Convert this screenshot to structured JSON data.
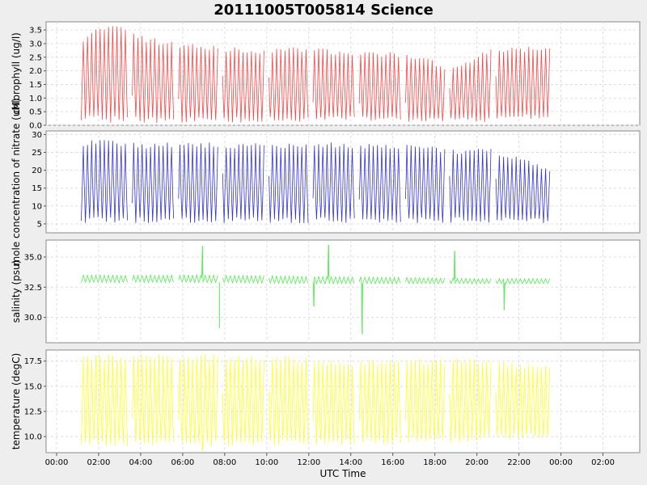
{
  "title": "20111005T005814 Science",
  "x_axis": {
    "label": "UTC Time",
    "range_hours": [
      -0.5,
      27.75
    ],
    "ticks": [
      "00:00",
      "02:00",
      "04:00",
      "06:00",
      "08:00",
      "10:00",
      "12:00",
      "14:00",
      "16:00",
      "18:00",
      "20:00",
      "22:00",
      "00:00",
      "02:00"
    ],
    "tick_hours": [
      0,
      2,
      4,
      6,
      8,
      10,
      12,
      14,
      16,
      18,
      20,
      22,
      24,
      26
    ]
  },
  "chart_data": [
    {
      "type": "line",
      "name": "chlorophyll",
      "ylabel": "chlorophyll (ug/l)",
      "ylim": [
        0.0,
        3.8
      ],
      "yticks": [
        "0.0",
        "0.5",
        "1.0",
        "1.5",
        "2.0",
        "2.5",
        "3.0",
        "3.5"
      ],
      "ytick_values": [
        0.0,
        0.5,
        1.0,
        1.5,
        2.0,
        2.5,
        3.0,
        3.5
      ],
      "color": "#ff4444",
      "grid": true,
      "x_start": 1.17,
      "x_end": 23.5,
      "profile_period_hours": 0.2,
      "gap_hours": [
        3.4,
        5.6,
        7.7,
        9.9,
        12.0,
        14.2,
        16.4,
        18.5,
        20.7
      ],
      "gap_width_hours": 0.2,
      "envelope": {
        "x": [
          1.17,
          2.0,
          3.0,
          4.0,
          6.0,
          8.0,
          10.0,
          12.0,
          14.0,
          16.0,
          17.5,
          18.5,
          19.5,
          20.5,
          22.5,
          23.5
        ],
        "high": [
          3.1,
          3.5,
          3.7,
          3.2,
          2.9,
          2.8,
          2.7,
          2.8,
          2.6,
          2.6,
          2.5,
          2.0,
          2.3,
          2.7,
          2.8,
          2.8
        ],
        "low": [
          0.3,
          0.25,
          0.2,
          0.2,
          0.2,
          0.2,
          0.2,
          0.2,
          0.25,
          0.25,
          0.2,
          0.2,
          0.2,
          0.2,
          0.3,
          0.3
        ]
      }
    },
    {
      "type": "line",
      "name": "nitrate",
      "ylabel": "mole concentration of nitrate (uM)",
      "ylim": [
        2.5,
        31.0
      ],
      "yticks": [
        "5",
        "10",
        "15",
        "20",
        "25",
        "30"
      ],
      "ytick_values": [
        5,
        10,
        15,
        20,
        25,
        30
      ],
      "color": "#3333dd",
      "grid": true,
      "x_start": 1.17,
      "x_end": 23.5,
      "profile_period_hours": 0.2,
      "gap_hours": [
        3.4,
        5.6,
        7.7,
        9.9,
        12.0,
        14.2,
        16.4,
        18.5,
        20.7
      ],
      "gap_width_hours": 0.2,
      "envelope": {
        "x": [
          1.17,
          2.0,
          3.0,
          4.0,
          6.0,
          8.0,
          10.0,
          12.0,
          14.0,
          16.0,
          18.0,
          19.0,
          20.0,
          21.0,
          22.0,
          23.0,
          23.5
        ],
        "high": [
          27,
          28.5,
          27.5,
          27,
          27,
          27,
          27,
          27,
          27,
          26.5,
          26,
          25,
          26,
          25,
          23,
          21,
          20
        ],
        "low": [
          6,
          6,
          6,
          6,
          6,
          6,
          6,
          6,
          6,
          6,
          6,
          6,
          6,
          6,
          6,
          6,
          5.5
        ]
      }
    },
    {
      "type": "line",
      "name": "salinity",
      "ylabel": "salinity (psu)",
      "ylim": [
        27.9,
        36.4
      ],
      "yticks": [
        "30.0",
        "32.5",
        "35.0"
      ],
      "ytick_values": [
        30.0,
        32.5,
        35.0
      ],
      "color": "#55ee55",
      "grid": true,
      "x_start": 1.17,
      "x_end": 23.5,
      "profile_period_hours": 0.2,
      "gap_hours": [
        3.4,
        5.6,
        7.7,
        9.9,
        12.0,
        14.2,
        16.4,
        18.5,
        20.7
      ],
      "gap_width_hours": 0.2,
      "envelope": {
        "x": [
          1.17,
          4.0,
          8.0,
          12.0,
          16.0,
          20.0,
          23.5
        ],
        "high": [
          33.5,
          33.5,
          33.5,
          33.4,
          33.3,
          33.2,
          33.2
        ],
        "low": [
          32.9,
          32.9,
          32.9,
          32.8,
          32.8,
          32.8,
          32.8
        ]
      },
      "spikes": [
        {
          "x": 6.95,
          "value": 35.9
        },
        {
          "x": 7.75,
          "value": 29.1
        },
        {
          "x": 12.25,
          "value": 30.9
        },
        {
          "x": 12.95,
          "value": 36.0
        },
        {
          "x": 14.55,
          "value": 28.6
        },
        {
          "x": 18.95,
          "value": 35.5
        },
        {
          "x": 21.3,
          "value": 30.6
        }
      ]
    },
    {
      "type": "line",
      "name": "temperature",
      "ylabel": "temperature (degC)",
      "ylim": [
        8.4,
        18.6
      ],
      "yticks": [
        "10.0",
        "12.5",
        "15.0",
        "17.5"
      ],
      "ytick_values": [
        10.0,
        12.5,
        15.0,
        17.5
      ],
      "color": "#ffff22",
      "grid": true,
      "x_start": 1.17,
      "x_end": 23.5,
      "profile_period_hours": 0.2,
      "gap_hours": [
        3.4,
        5.6,
        7.7,
        9.9,
        12.0,
        14.2,
        16.4,
        18.5,
        20.7
      ],
      "gap_width_hours": 0.2,
      "envelope": {
        "x": [
          1.17,
          4.0,
          8.0,
          12.0,
          14.0,
          16.0,
          20.0,
          22.0,
          23.5
        ],
        "high": [
          17.9,
          17.9,
          17.9,
          17.6,
          17.3,
          17.4,
          17.5,
          17.0,
          17.0
        ],
        "low": [
          9.3,
          9.3,
          9.3,
          9.4,
          9.5,
          9.6,
          9.7,
          10.0,
          10.0
        ]
      },
      "spikes": [
        {
          "x": 6.95,
          "value": 8.6
        }
      ]
    }
  ]
}
